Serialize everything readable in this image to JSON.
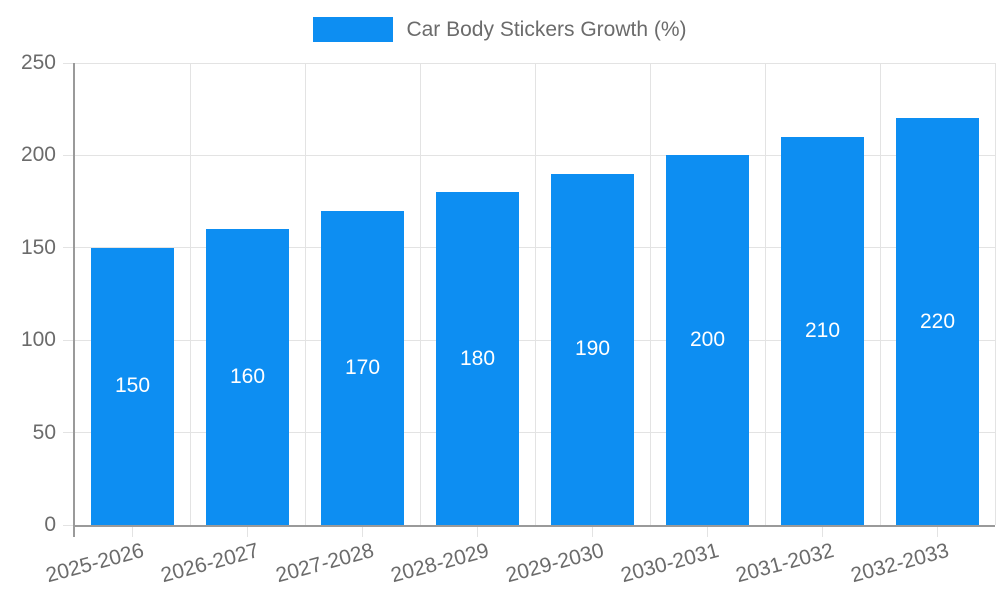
{
  "legend": {
    "label": "Car Body Stickers Growth (%)"
  },
  "chart_data": {
    "type": "bar",
    "title": "Car Body Stickers Growth (%)",
    "categories": [
      "2025-2026",
      "2026-2027",
      "2027-2028",
      "2028-2029",
      "2029-2030",
      "2030-2031",
      "2031-2032",
      "2032-2033"
    ],
    "values": [
      150,
      160,
      170,
      180,
      190,
      200,
      210,
      220
    ],
    "xlabel": "",
    "ylabel": "",
    "ylim": [
      0,
      250
    ],
    "yticks": [
      0,
      50,
      100,
      150,
      200,
      250
    ],
    "grid": true,
    "legend_position": "top",
    "bar_color": "#0d8ef2",
    "value_label_color": "#ffffff",
    "grid_color": "#e3e3e3",
    "axis_color": "#9a9a9a",
    "tick_text_color": "#6b6b6b"
  }
}
